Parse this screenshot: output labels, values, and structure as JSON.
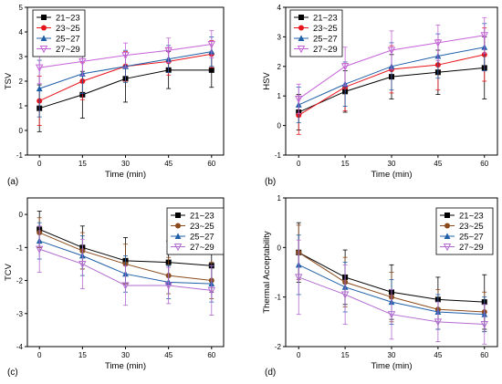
{
  "colors": {
    "s1": "#000000",
    "s2": "#e8141b",
    "s3": "#1f5fa8",
    "s4": "#c563d8",
    "s2_alt": "#8b4a1c",
    "s4_alt": "#b26bd0"
  },
  "chart_data": [
    {
      "type": "line",
      "panel_label": "(a)",
      "xlabel": "Time (min)",
      "ylabel": "TSV",
      "x": [
        0,
        15,
        30,
        45,
        60
      ],
      "xticks": [
        "0",
        "15",
        "30",
        "45",
        "60"
      ],
      "ylim": [
        -1,
        5
      ],
      "yticks": [
        "-1",
        "0",
        "1",
        "2",
        "3",
        "4",
        "5"
      ],
      "legend_position": "top-left",
      "series": [
        {
          "name": "21~23",
          "marker": "square",
          "values": [
            0.9,
            1.45,
            2.1,
            2.45,
            2.45
          ],
          "err": [
            0.95,
            0.95,
            0.95,
            0.75,
            0.7
          ]
        },
        {
          "name": "23~25",
          "marker": "circle",
          "values": [
            1.2,
            2.0,
            2.6,
            2.8,
            3.1
          ],
          "err": [
            1.0,
            0.75,
            0.6,
            0.55,
            0.55
          ]
        },
        {
          "name": "25~27",
          "marker": "triangle-up",
          "values": [
            1.7,
            2.3,
            2.6,
            2.9,
            3.2
          ],
          "err": [
            1.15,
            0.8,
            0.65,
            0.55,
            0.6
          ]
        },
        {
          "name": "27~29",
          "marker": "triangle-down",
          "values": [
            2.55,
            2.8,
            3.05,
            3.25,
            3.5
          ],
          "err": [
            0.65,
            0.55,
            0.5,
            0.5,
            0.55
          ]
        }
      ]
    },
    {
      "type": "line",
      "panel_label": "(b)",
      "xlabel": "Time (min)",
      "ylabel": "HSV",
      "x": [
        0,
        15,
        30,
        45,
        60
      ],
      "xticks": [
        "0",
        "15",
        "30",
        "45",
        "60"
      ],
      "ylim": [
        -1,
        4
      ],
      "yticks": [
        "-1",
        "0",
        "1",
        "2",
        "3",
        "4"
      ],
      "legend_position": "top-left",
      "series": [
        {
          "name": "21~23",
          "marker": "square",
          "values": [
            0.45,
            1.15,
            1.65,
            1.8,
            1.95
          ],
          "err": [
            0.6,
            0.7,
            0.75,
            0.75,
            1.05
          ]
        },
        {
          "name": "23~25",
          "marker": "circle",
          "values": [
            0.35,
            1.3,
            1.9,
            2.05,
            2.4
          ],
          "err": [
            0.65,
            0.8,
            0.8,
            0.85,
            0.9
          ]
        },
        {
          "name": "25~27",
          "marker": "triangle-up",
          "values": [
            0.7,
            1.4,
            2.0,
            2.35,
            2.65
          ],
          "err": [
            0.6,
            0.75,
            0.8,
            0.75,
            0.8
          ]
        },
        {
          "name": "27~29",
          "marker": "triangle-down",
          "values": [
            0.9,
            2.0,
            2.55,
            2.8,
            3.05
          ],
          "err": [
            0.5,
            0.65,
            0.65,
            0.6,
            0.6
          ]
        }
      ]
    },
    {
      "type": "line",
      "panel_label": "(c)",
      "xlabel": "Time (min)",
      "ylabel": "TCV",
      "x": [
        0,
        15,
        30,
        45,
        60
      ],
      "xticks": [
        "0",
        "15",
        "30",
        "45",
        "60"
      ],
      "ylim": [
        -4,
        0.5
      ],
      "yticks": [
        "-4",
        "-3",
        "-2",
        "-1",
        "0"
      ],
      "legend_position": "top-right",
      "series": [
        {
          "name": "21~23",
          "marker": "square",
          "values": [
            -0.45,
            -1.0,
            -1.4,
            -1.45,
            -1.55
          ],
          "err": [
            0.55,
            0.65,
            0.7,
            0.65,
            0.8
          ]
        },
        {
          "name": "23~25",
          "marker": "circle",
          "values": [
            -0.55,
            -1.1,
            -1.5,
            -1.85,
            -2.0
          ],
          "err": [
            0.45,
            0.55,
            0.6,
            0.55,
            0.55
          ]
        },
        {
          "name": "25~27",
          "marker": "triangle-up",
          "values": [
            -0.8,
            -1.25,
            -1.8,
            -2.05,
            -2.1
          ],
          "err": [
            0.55,
            0.6,
            0.55,
            0.5,
            0.55
          ]
        },
        {
          "name": "27~29",
          "marker": "triangle-down",
          "values": [
            -1.05,
            -1.5,
            -2.15,
            -2.15,
            -2.3
          ],
          "err": [
            0.7,
            0.75,
            0.6,
            0.55,
            0.75
          ]
        }
      ]
    },
    {
      "type": "line",
      "panel_label": "(d)",
      "xlabel": "Time (min)",
      "ylabel": "Thermal Acceptability",
      "x": [
        0,
        15,
        30,
        45,
        60
      ],
      "xticks": [
        "0",
        "15",
        "30",
        "45",
        "60"
      ],
      "ylim": [
        -2,
        1
      ],
      "yticks": [
        "-2",
        "-1",
        "0",
        "1"
      ],
      "legend_position": "top-right",
      "series": [
        {
          "name": "21~23",
          "marker": "square",
          "values": [
            -0.1,
            -0.6,
            -0.9,
            -1.05,
            -1.1
          ],
          "err": [
            0.6,
            0.55,
            0.55,
            0.45,
            0.55
          ]
        },
        {
          "name": "23~25",
          "marker": "circle",
          "values": [
            -0.1,
            -0.7,
            -1.0,
            -1.25,
            -1.3
          ],
          "err": [
            0.55,
            0.5,
            0.5,
            0.4,
            0.4
          ]
        },
        {
          "name": "25~27",
          "marker": "triangle-up",
          "values": [
            -0.35,
            -0.8,
            -1.1,
            -1.3,
            -1.35
          ],
          "err": [
            0.6,
            0.5,
            0.45,
            0.35,
            0.35
          ]
        },
        {
          "name": "27~29",
          "marker": "triangle-down",
          "values": [
            -0.6,
            -0.95,
            -1.35,
            -1.5,
            -1.55
          ],
          "err": [
            0.75,
            0.6,
            0.5,
            0.4,
            0.4
          ]
        }
      ]
    }
  ]
}
